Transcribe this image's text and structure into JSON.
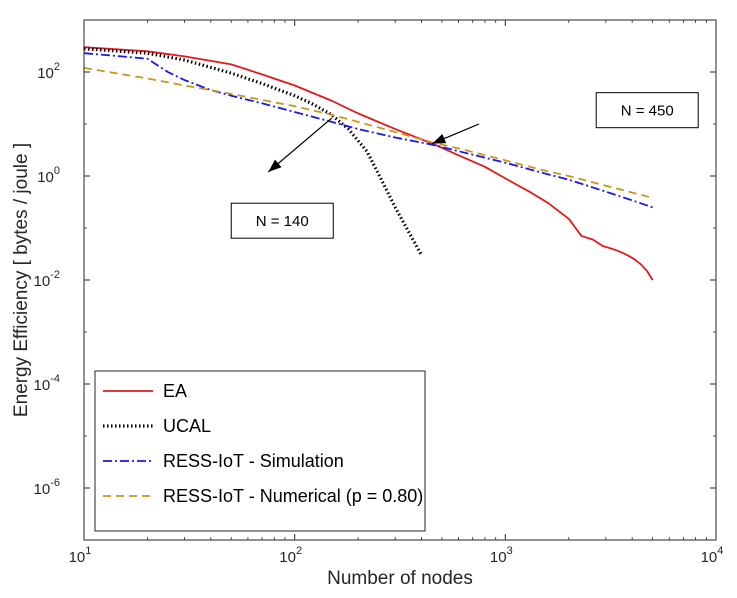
{
  "chart_data": {
    "type": "line",
    "xlabel": "Number of nodes",
    "ylabel": "Energy Efficiency [ bytes / joule ]",
    "xscale": "log",
    "yscale": "log",
    "xlim": [
      10,
      10000
    ],
    "ylim": [
      1e-07,
      1000
    ],
    "grid": false,
    "legend_position": "bottom-left",
    "x_ticks": [
      {
        "base": "10",
        "exp": "1"
      },
      {
        "base": "10",
        "exp": "2"
      },
      {
        "base": "10",
        "exp": "3"
      },
      {
        "base": "10",
        "exp": "4"
      }
    ],
    "y_ticks": [
      {
        "base": "10",
        "exp": "-6",
        "value": 1e-06
      },
      {
        "base": "10",
        "exp": "-4",
        "value": 0.0001
      },
      {
        "base": "10",
        "exp": "-2",
        "value": 0.01
      },
      {
        "base": "10",
        "exp": "0",
        "value": 1
      },
      {
        "base": "10",
        "exp": "2",
        "value": 100
      }
    ],
    "series": [
      {
        "name": "EA",
        "color": "#e3191c",
        "style": "solid",
        "x": [
          10,
          20,
          30,
          50,
          70,
          100,
          150,
          200,
          300,
          450,
          600,
          800,
          1000,
          1300,
          1600,
          2000,
          2300,
          2600,
          2900,
          3200,
          3500,
          3800,
          4100,
          4400,
          4700,
          5000
        ],
        "y": [
          300,
          250,
          200,
          140,
          90,
          55,
          28,
          16,
          8,
          4.2,
          2.5,
          1.5,
          0.9,
          0.5,
          0.3,
          0.15,
          0.07,
          0.06,
          0.045,
          0.04,
          0.035,
          0.03,
          0.025,
          0.02,
          0.015,
          0.01
        ]
      },
      {
        "name": "UCAL",
        "color": "#000000",
        "style": "dotted",
        "x": [
          10,
          20,
          30,
          50,
          70,
          100,
          120,
          150,
          180,
          220,
          260,
          300,
          350,
          400
        ],
        "y": [
          280,
          230,
          170,
          95,
          60,
          35,
          25,
          15,
          8,
          3,
          0.8,
          0.25,
          0.08,
          0.03
        ]
      },
      {
        "name": "RESS-IoT - Simulation",
        "color": "#1919e6",
        "style": "dashdot",
        "x": [
          10,
          15,
          20,
          25,
          30,
          40,
          50,
          70,
          100,
          150,
          200,
          300,
          450,
          600,
          1000,
          1500,
          2000,
          3000,
          4000,
          5000
        ],
        "y": [
          230,
          200,
          180,
          100,
          70,
          45,
          35,
          25,
          17,
          11,
          8,
          5.5,
          4,
          3,
          1.8,
          1.15,
          0.85,
          0.5,
          0.34,
          0.25
        ]
      },
      {
        "name": "RESS-IoT - Numerical (p = 0.80)",
        "color": "#c7961e",
        "style": "dashed",
        "x": [
          10,
          20,
          30,
          50,
          70,
          100,
          150,
          200,
          300,
          450,
          600,
          1000,
          1500,
          2000,
          3000,
          4000,
          5000
        ],
        "y": [
          120,
          75,
          55,
          38,
          29,
          22,
          15,
          11,
          7,
          4.4,
          3.4,
          2,
          1.3,
          1,
          0.65,
          0.48,
          0.38
        ]
      }
    ],
    "annotations": [
      {
        "text": "N = 450",
        "box_corner": [
          2700,
          40
        ],
        "arrow_from": [
          750,
          10
        ],
        "arrow_to": [
          450,
          4.2
        ]
      },
      {
        "text": "N = 140",
        "box_corner": [
          50,
          0.3
        ],
        "arrow_from": [
          150,
          13
        ],
        "arrow_to": [
          75,
          1.2
        ]
      }
    ]
  }
}
